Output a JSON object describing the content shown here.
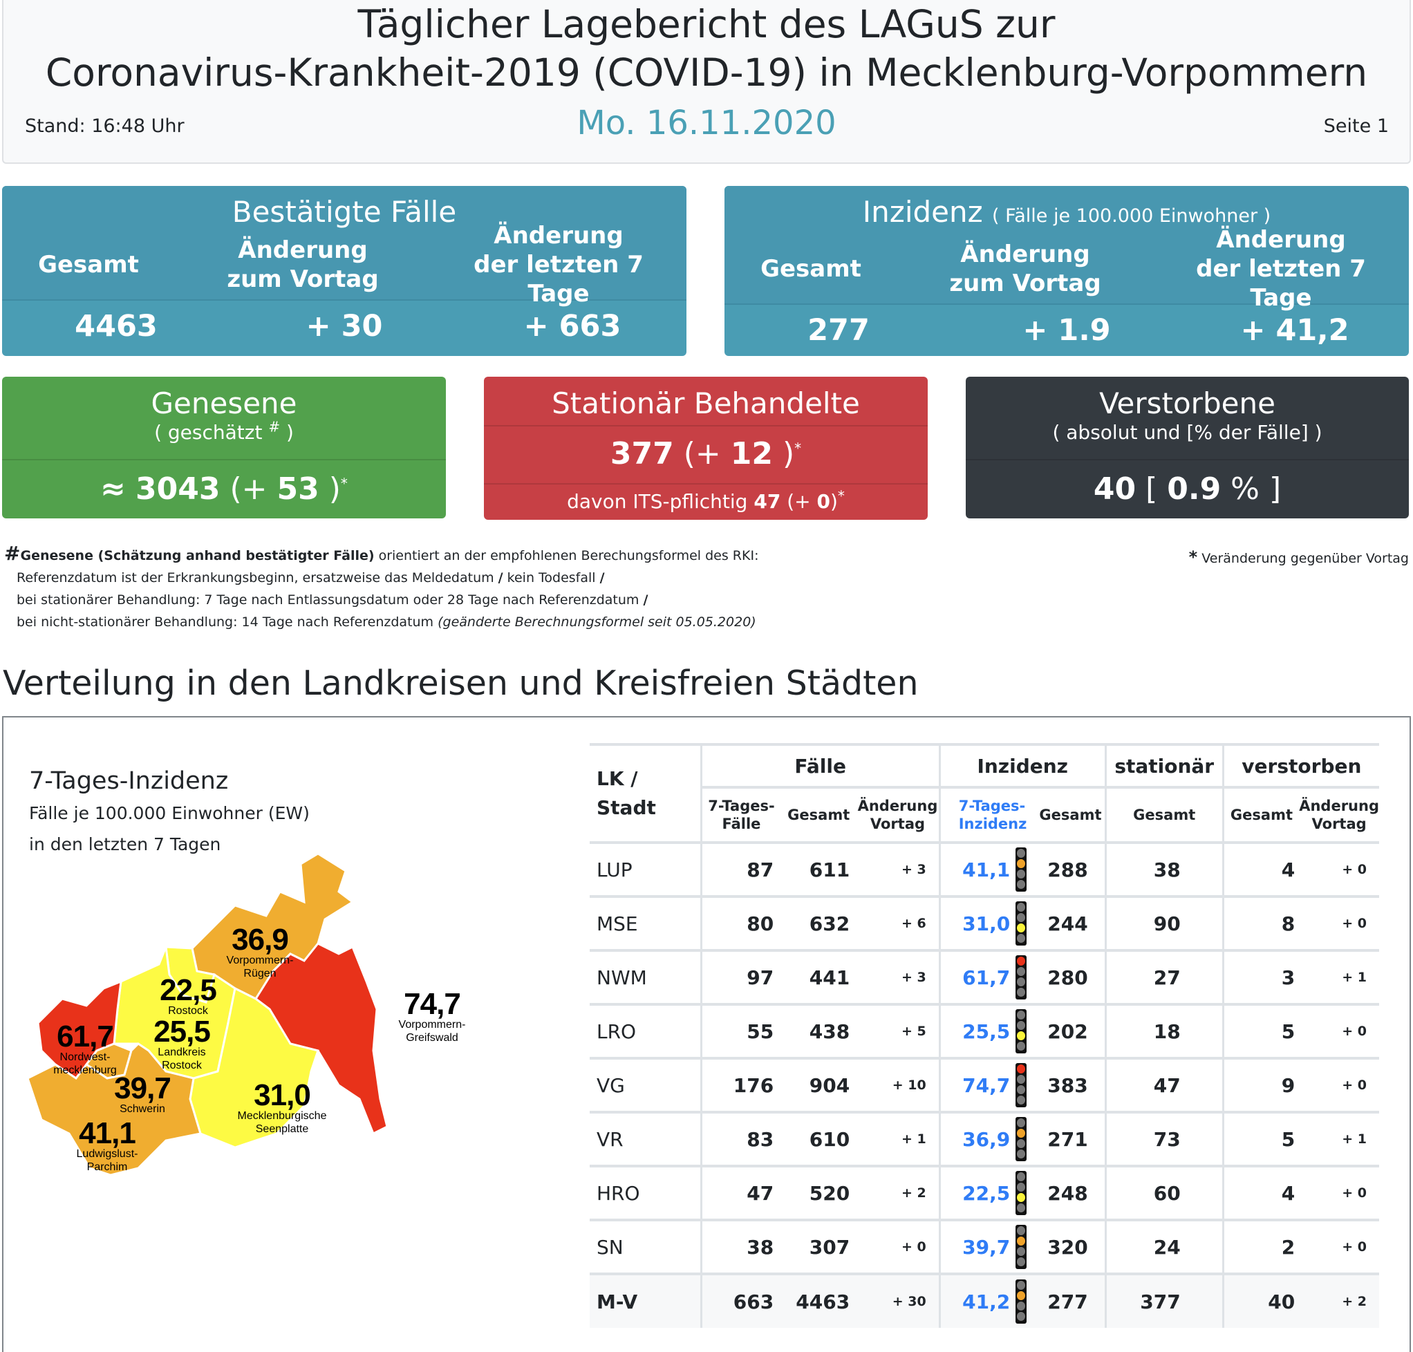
{
  "header": {
    "title_line1": "Täglicher Lagebericht des LAGuS zur",
    "title_line2": "Coronavirus-Krankheit-2019 (COVID-19) in Mecklenburg-Vorpommern",
    "stand": "Stand: 16:48 Uhr",
    "date": "Mo. 16.11.2020",
    "page": "Seite 1"
  },
  "colors": {
    "teal": "#4a9db4",
    "green": "#52a14c",
    "red": "#c74045",
    "dark": "#343a40",
    "date_accent": "#4aa0b5",
    "incidence_blue": "#2f7cf6",
    "map_red": "#e8321a",
    "map_orange": "#f0ad30",
    "map_yellow": "#fdfa44"
  },
  "cards": {
    "bestaetigte": {
      "title": "Bestätigte Fälle",
      "col1": "Gesamt",
      "col2": "Änderung zum Vortag",
      "col3": "Änderung der letzten 7 Tage",
      "val1": "4463",
      "val2": "+ 30",
      "val3": "+ 663"
    },
    "inzidenz": {
      "title": "Inzidenz",
      "subtitle": "( Fälle je 100.000 Einwohner )",
      "col1": "Gesamt",
      "col2": "Änderung zum Vortag",
      "col3": "Änderung der letzten 7 Tage",
      "val1": "277",
      "val2": "+ 1.9",
      "val3": "+ 41,2"
    },
    "genesene": {
      "title": "Genesene",
      "subtitle_pre": "( geschätzt ",
      "subtitle_mark": "#",
      "subtitle_post": " )",
      "approx": "≈",
      "value": "3043",
      "change_pre": " (+ ",
      "change": "53",
      "change_post": " )",
      "star": "*"
    },
    "stationaer": {
      "title": "Stationär Behandelte",
      "value": "377",
      "change_pre": " (+ ",
      "change": "12",
      "change_post": " )",
      "star": "*",
      "its_label": "davon ITS-pflichtig ",
      "its_value": "47",
      "its_change_pre": " (+ ",
      "its_change": "0",
      "its_change_post": ")",
      "its_star": "*"
    },
    "verstorbene": {
      "title": "Verstorbene",
      "subtitle": "( absolut und [% der Fälle] )",
      "value": "40",
      "percent_pre": " [ ",
      "percent": "0.9",
      "percent_post": " % ]"
    }
  },
  "footnote": {
    "hash": "#",
    "bold": "Genesene (Schätzung anhand bestätigter Fälle)",
    "line1_rest": " orientiert an der empfohlenen Berechungsformel des RKI:",
    "line2": "Referenzdatum ist der Erkrankungsbeginn, ersatzweise das Meldedatum ",
    "line2b": " kein Todesfall ",
    "slash": "/",
    "line3": "bei stationärer Behandlung: 7 Tage nach Entlassungsdatum oder 28 Tage nach Referenzdatum ",
    "line4": "bei nicht-stationärer Behandlung: 14 Tage nach Referenzdatum ",
    "line4_italic": "(geänderte Berechnungsformel seit 05.05.2020)",
    "right_star": "*",
    "right_text": " Veränderung gegenüber Vortag"
  },
  "section": {
    "title": "Verteilung in den Landkreisen und Kreisfreien Städten"
  },
  "map": {
    "title": "7-Tages-Inzidenz",
    "sub1": "Fälle je 100.000 Einwohner (EW)",
    "sub2": "in den letzten 7 Tagen",
    "regions": [
      {
        "value": "36,9",
        "name1": "Vorpommern-",
        "name2": "Rügen",
        "level": "orange"
      },
      {
        "value": "22,5",
        "name1": "Rostock",
        "name2": "",
        "level": "yellow"
      },
      {
        "value": "74,7",
        "name1": "Vorpommern-",
        "name2": "Greifswald",
        "level": "red"
      },
      {
        "value": "61,7",
        "name1": "Nordwest-",
        "name2": "mecklenburg",
        "level": "red"
      },
      {
        "value": "25,5",
        "name1": "Landkreis",
        "name2": "Rostock",
        "level": "yellow"
      },
      {
        "value": "39,7",
        "name1": "Schwerin",
        "name2": "",
        "level": "orange"
      },
      {
        "value": "31,0",
        "name1": "Mecklenburgische",
        "name2": "Seenplatte",
        "level": "yellow"
      },
      {
        "value": "41,1",
        "name1": "Ludwigslust-",
        "name2": "Parchim",
        "level": "orange"
      }
    ]
  },
  "table": {
    "head": {
      "lk1": "LK /",
      "lk2": "Stadt",
      "faelle": "Fälle",
      "inzidenz": "Inzidenz",
      "stationaer": "stationär",
      "verstorben": "verstorben",
      "f7a": "7-Tages-",
      "f7b": "Fälle",
      "fges": "Gesamt",
      "fchg1": "Änderung",
      "fchg2": "Vortag",
      "i7a": "7-Tages-",
      "i7b": "Inzidenz",
      "iges": "Gesamt",
      "sges": "Gesamt",
      "vges": "Gesamt",
      "vchg1": "Änderung",
      "vchg2": "Vortag"
    },
    "rows": [
      {
        "name": "LUP",
        "f7": "87",
        "fges": "611",
        "fchg": "+ 3",
        "i7": "41,1",
        "light": "orange",
        "iges": "288",
        "stat": "38",
        "vges": "4",
        "vchg": "+ 0"
      },
      {
        "name": "MSE",
        "f7": "80",
        "fges": "632",
        "fchg": "+ 6",
        "i7": "31,0",
        "light": "yellow",
        "iges": "244",
        "stat": "90",
        "vges": "8",
        "vchg": "+ 0"
      },
      {
        "name": "NWM",
        "f7": "97",
        "fges": "441",
        "fchg": "+ 3",
        "i7": "61,7",
        "light": "red",
        "iges": "280",
        "stat": "27",
        "vges": "3",
        "vchg": "+ 1"
      },
      {
        "name": "LRO",
        "f7": "55",
        "fges": "438",
        "fchg": "+ 5",
        "i7": "25,5",
        "light": "yellow",
        "iges": "202",
        "stat": "18",
        "vges": "5",
        "vchg": "+ 0"
      },
      {
        "name": "VG",
        "f7": "176",
        "fges": "904",
        "fchg": "+ 10",
        "i7": "74,7",
        "light": "red",
        "iges": "383",
        "stat": "47",
        "vges": "9",
        "vchg": "+ 0"
      },
      {
        "name": "VR",
        "f7": "83",
        "fges": "610",
        "fchg": "+ 1",
        "i7": "36,9",
        "light": "orange",
        "iges": "271",
        "stat": "73",
        "vges": "5",
        "vchg": "+ 1"
      },
      {
        "name": "HRO",
        "f7": "47",
        "fges": "520",
        "fchg": "+ 2",
        "i7": "22,5",
        "light": "yellow",
        "iges": "248",
        "stat": "60",
        "vges": "4",
        "vchg": "+ 0"
      },
      {
        "name": "SN",
        "f7": "38",
        "fges": "307",
        "fchg": "+ 0",
        "i7": "39,7",
        "light": "orange",
        "iges": "320",
        "stat": "24",
        "vges": "2",
        "vchg": "+ 0"
      },
      {
        "name": "M-V",
        "f7": "663",
        "fges": "4463",
        "fchg": "+ 30",
        "i7": "41,2",
        "light": "orange",
        "iges": "277",
        "stat": "377",
        "vges": "40",
        "vchg": "+ 2",
        "total": true
      }
    ]
  }
}
